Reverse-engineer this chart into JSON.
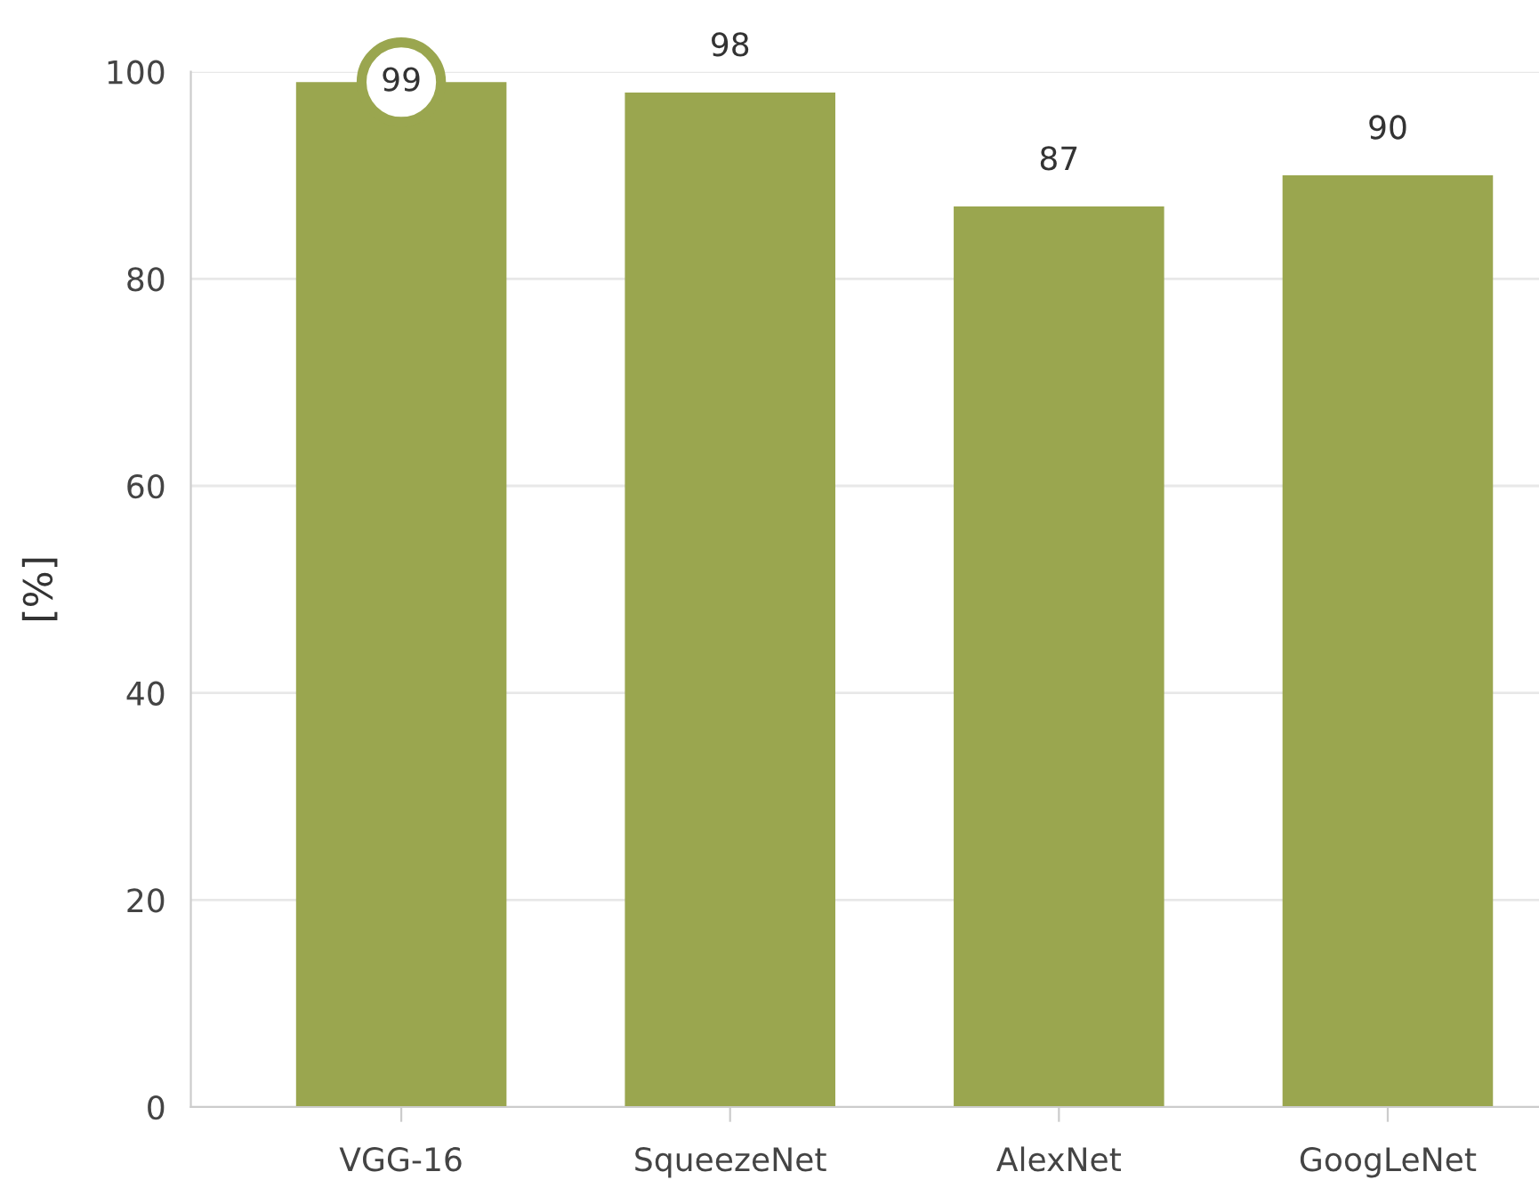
{
  "chart_data": {
    "type": "bar",
    "ylabel": "[%]",
    "categories": [
      "VGG-16",
      "SqueezeNet",
      "AlexNet",
      "GoogLeNet"
    ],
    "values": [
      99,
      98,
      87,
      90
    ],
    "color": "#9aa64f",
    "ylim": [
      0,
      100
    ],
    "yticks": [
      0,
      20,
      40,
      60,
      80,
      100
    ],
    "grid": "y",
    "data_labels": true
  }
}
